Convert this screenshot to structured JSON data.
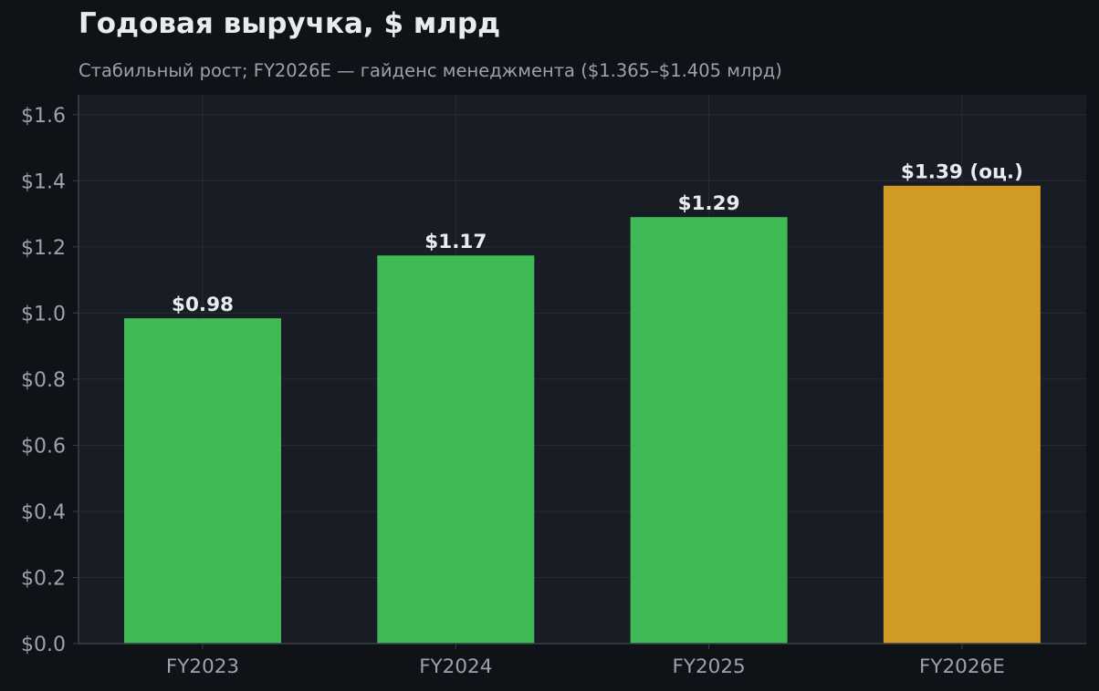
{
  "chart_data": {
    "type": "bar",
    "title": "Годовая выручка, $ млрд",
    "subtitle": "Стабильный рост; FY2026E — гайденс менеджмента ($1.365–$1.405 млрд)",
    "xlabel": "",
    "ylabel": "",
    "categories": [
      "FY2023",
      "FY2024",
      "FY2025",
      "FY2026E"
    ],
    "values": [
      0.984,
      1.174,
      1.29,
      1.385
    ],
    "value_labels": [
      "$0.98",
      "$1.17",
      "$1.29",
      "$1.39 (оц.)"
    ],
    "bar_colors": [
      "#3fba55",
      "#3fba55",
      "#3fba55",
      "#d19a25"
    ],
    "ylim": [
      0,
      1.66
    ],
    "yticks": [
      0,
      0.2,
      0.4,
      0.6,
      0.8,
      1.0,
      1.2,
      1.4,
      1.6
    ],
    "ytick_labels": [
      "$0.0",
      "$0.2",
      "$0.4",
      "$0.6",
      "$0.8",
      "$1.0",
      "$1.2",
      "$1.4",
      "$1.6"
    ],
    "grid": true,
    "legend": "none"
  },
  "colors": {
    "background": "#0f1318",
    "plot_background": "#181c24",
    "grid": "#262b34",
    "text_primary": "#e8ebef",
    "text_muted": "#9aa3ad",
    "actual_bar": "#3fba55",
    "estimate_bar": "#d19a25"
  }
}
